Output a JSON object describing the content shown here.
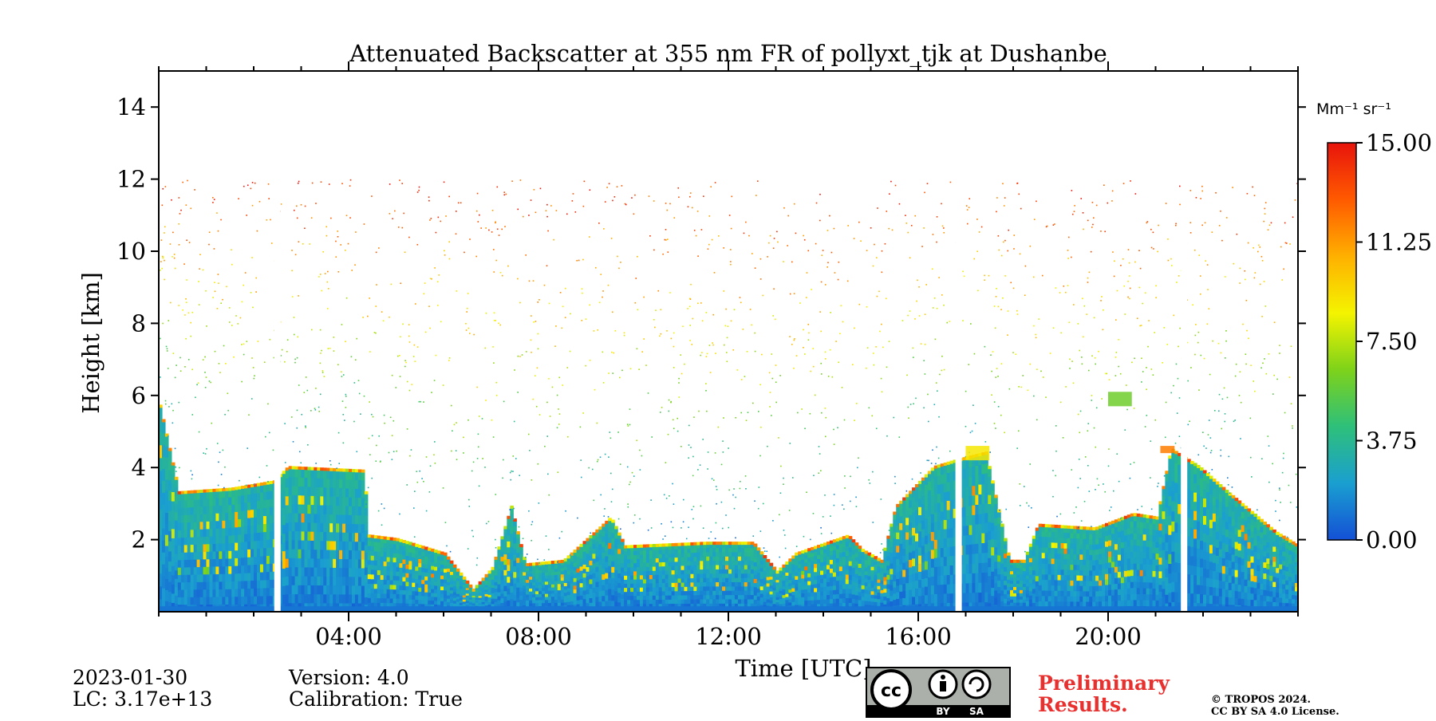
{
  "chart_data": {
    "type": "heatmap",
    "title": "Attenuated Backscatter at 355 nm FR of pollyxt_tjk at Dushanbe",
    "xlabel": "Time [UTC]",
    "ylabel": "Height [km]",
    "xlim_hours": [
      0,
      24
    ],
    "ylim_km": [
      0,
      15
    ],
    "x_ticks": [
      {
        "hour": 4,
        "label": "04:00"
      },
      {
        "hour": 8,
        "label": "08:00"
      },
      {
        "hour": 12,
        "label": "12:00"
      },
      {
        "hour": 16,
        "label": "16:00"
      },
      {
        "hour": 20,
        "label": "20:00"
      }
    ],
    "y_ticks": [
      {
        "km": 2,
        "label": "2"
      },
      {
        "km": 4,
        "label": "4"
      },
      {
        "km": 6,
        "label": "6"
      },
      {
        "km": 8,
        "label": "8"
      },
      {
        "km": 10,
        "label": "10"
      },
      {
        "km": 12,
        "label": "12"
      },
      {
        "km": 14,
        "label": "14"
      }
    ],
    "colorbar": {
      "unit": "Mm⁻¹ sr⁻¹",
      "range": [
        0,
        15
      ],
      "ticks": [
        {
          "value": 0,
          "label": "0.00"
        },
        {
          "value": 3.75,
          "label": "3.75"
        },
        {
          "value": 7.5,
          "label": "7.50"
        },
        {
          "value": 11.25,
          "label": "11.25"
        },
        {
          "value": 15,
          "label": "15.00"
        }
      ],
      "colors": [
        "#1450d6",
        "#1a9fd0",
        "#2ec07a",
        "#7ed21a",
        "#f4f400",
        "#ffb000",
        "#ff5a00",
        "#e8140c"
      ]
    },
    "data_gaps_hours": [
      2.5,
      16.85,
      21.6
    ],
    "boundary_layer_top_km": [
      [
        0,
        5.7
      ],
      [
        0.4,
        3.3
      ],
      [
        1.5,
        3.4
      ],
      [
        2.4,
        3.6
      ],
      [
        2.7,
        4.0
      ],
      [
        4.3,
        3.9
      ],
      [
        4.4,
        2.1
      ],
      [
        5.0,
        2.0
      ],
      [
        5.5,
        1.8
      ],
      [
        6.0,
        1.6
      ],
      [
        6.6,
        0.6
      ],
      [
        7.0,
        1.2
      ],
      [
        7.4,
        2.9
      ],
      [
        7.7,
        1.3
      ],
      [
        8.5,
        1.4
      ],
      [
        9.5,
        2.6
      ],
      [
        9.8,
        1.8
      ],
      [
        11.5,
        1.9
      ],
      [
        12.5,
        1.9
      ],
      [
        13.0,
        1.1
      ],
      [
        13.4,
        1.6
      ],
      [
        14.5,
        2.1
      ],
      [
        14.8,
        1.7
      ],
      [
        15.2,
        1.4
      ],
      [
        15.5,
        2.9
      ],
      [
        16.3,
        4.0
      ],
      [
        16.8,
        4.2
      ],
      [
        17.4,
        4.4
      ],
      [
        17.9,
        1.4
      ],
      [
        18.2,
        1.4
      ],
      [
        18.5,
        2.4
      ],
      [
        19.7,
        2.3
      ],
      [
        20.5,
        2.7
      ],
      [
        21.0,
        2.6
      ],
      [
        21.3,
        4.5
      ],
      [
        21.9,
        4.0
      ],
      [
        22.5,
        3.3
      ],
      [
        23.5,
        2.2
      ],
      [
        24,
        1.8
      ]
    ],
    "elevated_layers": [
      {
        "hours": [
          20.0,
          20.5
        ],
        "km": [
          5.7,
          6.1
        ],
        "value": 6
      },
      {
        "hours": [
          17.0,
          17.5
        ],
        "km": [
          4.2,
          4.6
        ],
        "value": 9
      },
      {
        "hours": [
          21.1,
          21.4
        ],
        "km": [
          4.4,
          4.6
        ],
        "value": 12
      }
    ],
    "aloft_noise_km": [
      4,
      12
    ],
    "surface_value": 1
  },
  "footer": {
    "date": "2023-01-30",
    "lc": "LC: 3.17e+13",
    "version": "Version: 4.0",
    "calibration": "Calibration: True",
    "prelim_line1": "Preliminary",
    "prelim_line2": "Results.",
    "copyright_line1": "© TROPOS 2024.",
    "copyright_line2": "CC BY SA 4.0 License.",
    "cc_logo_text": "cc",
    "cc_by": "BY",
    "cc_sa": "SA"
  }
}
